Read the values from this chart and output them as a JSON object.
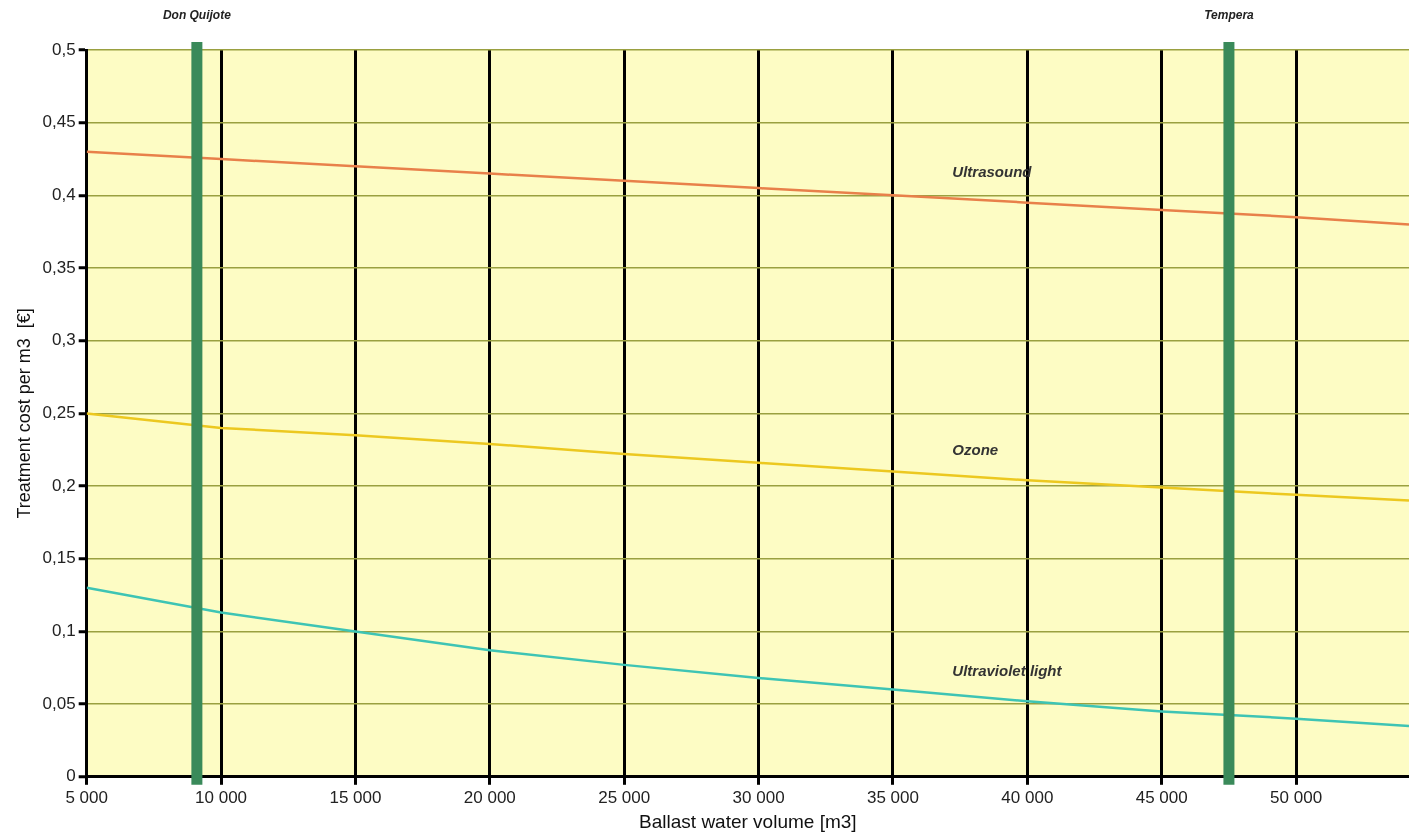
{
  "chart_data": {
    "type": "line",
    "xlabel": "Ballast water volume [m3]",
    "ylabel": "Treatment cost per m3  [€]",
    "x": [
      5000,
      10000,
      15000,
      20000,
      25000,
      30000,
      35000,
      40000,
      45000,
      50000,
      54200
    ],
    "series": [
      {
        "name": "Ultrasound",
        "color": "#e8804a",
        "values": [
          0.43,
          0.425,
          0.42,
          0.415,
          0.41,
          0.405,
          0.4,
          0.395,
          0.39,
          0.385,
          0.38
        ]
      },
      {
        "name": "Ozone",
        "color": "#ecc820",
        "values": [
          0.25,
          0.24,
          0.235,
          0.229,
          0.222,
          0.216,
          0.21,
          0.204,
          0.199,
          0.194,
          0.19
        ]
      },
      {
        "name": "Ultraviolet light",
        "color": "#3ec4b4",
        "values": [
          0.13,
          0.113,
          0.1,
          0.087,
          0.077,
          0.068,
          0.06,
          0.052,
          0.045,
          0.04,
          0.035
        ]
      }
    ],
    "xlim": [
      5000,
      54200
    ],
    "xticks": [
      {
        "value": 5000,
        "label": "5 000"
      },
      {
        "value": 10000,
        "label": "10 000"
      },
      {
        "value": 15000,
        "label": "15 000"
      },
      {
        "value": 20000,
        "label": "20 000"
      },
      {
        "value": 25000,
        "label": "25 000"
      },
      {
        "value": 30000,
        "label": "30 000"
      },
      {
        "value": 35000,
        "label": "35 000"
      },
      {
        "value": 40000,
        "label": "40 000"
      },
      {
        "value": 45000,
        "label": "45 000"
      },
      {
        "value": 50000,
        "label": "50 000"
      }
    ],
    "ylim": [
      0,
      0.5
    ],
    "yticks": [
      0,
      {
        "value": 0.05,
        "label": "0,05"
      },
      {
        "value": 0.1,
        "label": "0,1"
      },
      {
        "value": 0.15,
        "label": "0,15"
      },
      {
        "value": 0.2,
        "label": "0,2"
      },
      {
        "value": 0.25,
        "label": "0,25"
      },
      {
        "value": 0.3,
        "label": "0,3"
      },
      {
        "value": 0.35,
        "label": "0,35"
      },
      {
        "value": 0.4,
        "label": "0,4"
      },
      {
        "value": 0.45,
        "label": "0,45"
      },
      {
        "value": 0.5,
        "label": "0,5"
      }
    ],
    "ref_lines": [
      {
        "axis": "x",
        "value": 9100,
        "label": "Don Quijote",
        "color": "#3a8a5a"
      },
      {
        "axis": "x",
        "value": 47500,
        "label": "Tempera",
        "color": "#3a8a5a"
      }
    ],
    "grid": true,
    "legend": false,
    "marker": "none",
    "line_style": "solid"
  }
}
